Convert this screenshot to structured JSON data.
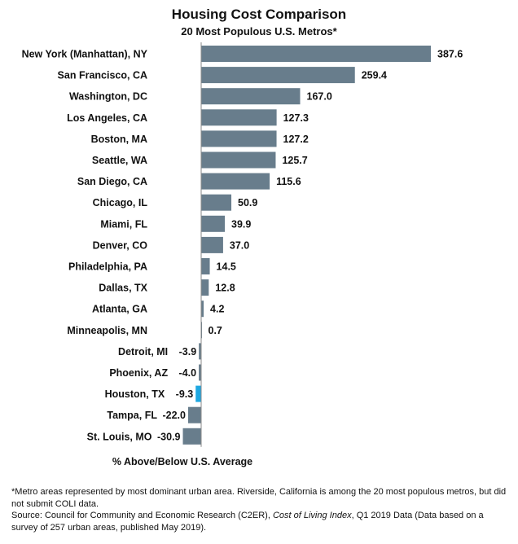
{
  "chart_data": {
    "type": "bar",
    "orientation": "horizontal",
    "title": "Housing Cost Comparison",
    "subtitle": "20 Most Populous U.S. Metros*",
    "xlabel": "% Above/Below U.S. Average",
    "ylabel": "",
    "xlim": [
      -30.9,
      387.6
    ],
    "grid": false,
    "legend": "none",
    "bar_color": "#687d8c",
    "highlight_color": "#1ea7e1",
    "highlight_category": "Houston, TX",
    "categories": [
      "New York (Manhattan), NY",
      "San Francisco, CA",
      "Washington, DC",
      "Los Angeles, CA",
      "Boston, MA",
      "Seattle, WA",
      "San Diego, CA",
      "Chicago, IL",
      "Miami, FL",
      "Denver, CO",
      "Philadelphia, PA",
      "Dallas, TX",
      "Atlanta, GA",
      "Minneapolis, MN",
      "Detroit, MI",
      "Phoenix, AZ",
      "Houston, TX",
      "Tampa, FL",
      "St. Louis, MO"
    ],
    "values": [
      387.6,
      259.4,
      167.0,
      127.3,
      127.2,
      125.7,
      115.6,
      50.9,
      39.9,
      37.0,
      14.5,
      12.8,
      4.2,
      0.7,
      -3.9,
      -4.0,
      -9.3,
      -22.0,
      -30.9
    ],
    "value_labels": [
      "387.6",
      "259.4",
      "167.0",
      "127.3",
      "127.2",
      "125.7",
      "115.6",
      "50.9",
      "39.9",
      "37.0",
      "14.5",
      "12.8",
      "4.2",
      "0.7",
      "-3.9",
      "-4.0",
      "-9.3",
      "-22.0",
      "-30.9"
    ]
  },
  "notes": {
    "footnote": "*Metro areas represented by most dominant urban area. Riverside, California is among the 20 most populous metros, but did not submit COLI data.",
    "source_prefix": "Source: Council for Community and Economic Research (C2ER), ",
    "source_italic": "Cost of Living Index",
    "source_suffix": ", Q1 2019 Data (Data based on a survey of 257 urban areas, published May 2019)."
  }
}
